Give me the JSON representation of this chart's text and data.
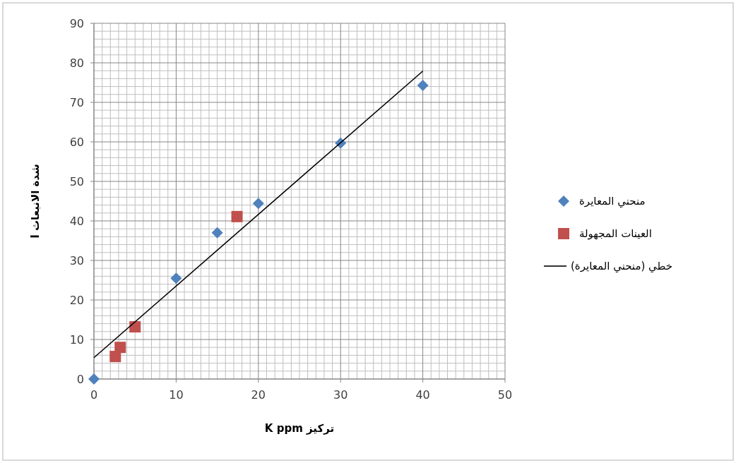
{
  "chart_data": {
    "type": "scatter",
    "xlabel": "تركيز K ppm",
    "ylabel": "شدة الانبعاث I",
    "xlim": [
      0,
      50
    ],
    "ylim": [
      0,
      90
    ],
    "xticks": [
      0,
      10,
      20,
      30,
      40,
      50
    ],
    "yticks": [
      0,
      10,
      20,
      30,
      40,
      50,
      60,
      70,
      80,
      90
    ],
    "grid": true,
    "legend": "right",
    "series": [
      {
        "name": "منحني المعايرة",
        "color": "#4f81bd",
        "marker": "diamond",
        "x": [
          0,
          10,
          15,
          20,
          30,
          40
        ],
        "values": [
          0,
          25.5,
          37,
          44.4,
          59.7,
          74.3
        ]
      },
      {
        "name": "العينات المجهولة",
        "color": "#c0504d",
        "marker": "square",
        "x": [
          2.6,
          3.2,
          5,
          17.4
        ],
        "values": [
          5.7,
          8,
          13.2,
          41.1
        ]
      },
      {
        "name": "خطي (منحني المعايرة)",
        "type": "line",
        "color": "#000000",
        "marker": "none",
        "line_style": "solid",
        "x": [
          0,
          40
        ],
        "values": [
          5.4,
          77.9
        ]
      }
    ]
  }
}
